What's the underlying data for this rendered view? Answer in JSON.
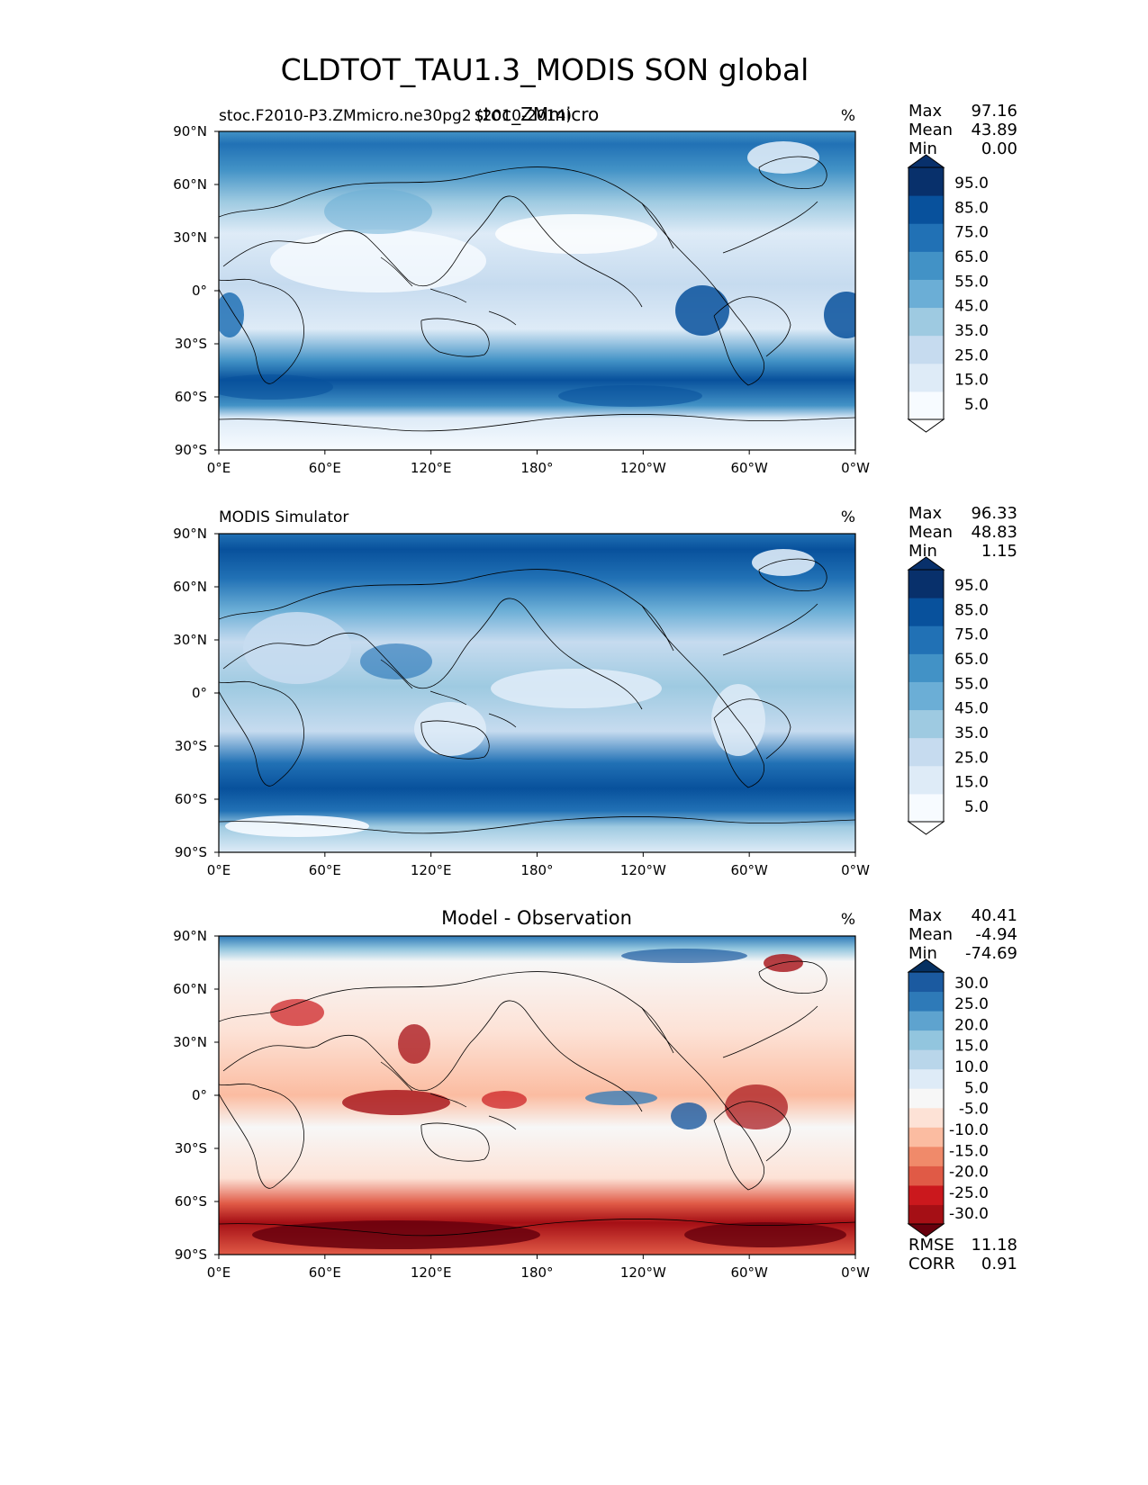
{
  "figure": {
    "title": "CLDTOT_TAU1.3_MODIS SON global"
  },
  "panels": [
    {
      "left_title": "stoc.F2010-P3.ZMmicro.ne30pg2 (2010-2014)",
      "center_title": "stoc_ZMmicro",
      "units": "%",
      "stats": [
        {
          "label": "Max",
          "value": "97.16"
        },
        {
          "label": "Mean",
          "value": "43.89"
        },
        {
          "label": "Min",
          "value": "0.00"
        }
      ],
      "colorbar": {
        "ticks": [
          "95.0",
          "85.0",
          "75.0",
          "65.0",
          "55.0",
          "45.0",
          "35.0",
          "25.0",
          "15.0",
          "5.0"
        ],
        "colors": [
          "#f7fbff",
          "#deebf7",
          "#c6dbef",
          "#9ecae1",
          "#6baed6",
          "#4292c6",
          "#2171b5",
          "#08519c",
          "#08306b"
        ],
        "under_color": "#ffffff",
        "over_color": "#08306b"
      }
    },
    {
      "left_title": "MODIS Simulator",
      "center_title": "",
      "units": "%",
      "stats": [
        {
          "label": "Max",
          "value": "96.33"
        },
        {
          "label": "Mean",
          "value": "48.83"
        },
        {
          "label": "Min",
          "value": "1.15"
        }
      ],
      "colorbar": {
        "ticks": [
          "95.0",
          "85.0",
          "75.0",
          "65.0",
          "55.0",
          "45.0",
          "35.0",
          "25.0",
          "15.0",
          "5.0"
        ],
        "colors": [
          "#f7fbff",
          "#deebf7",
          "#c6dbef",
          "#9ecae1",
          "#6baed6",
          "#4292c6",
          "#2171b5",
          "#08519c",
          "#08306b"
        ],
        "under_color": "#ffffff",
        "over_color": "#08306b"
      }
    },
    {
      "left_title": "",
      "center_title": "Model - Observation",
      "units": "%",
      "stats": [
        {
          "label": "Max",
          "value": "40.41"
        },
        {
          "label": "Mean",
          "value": "-4.94"
        },
        {
          "label": "Min",
          "value": "-74.69"
        }
      ],
      "colorbar": {
        "ticks": [
          "30.0",
          "25.0",
          "20.0",
          "15.0",
          "10.0",
          "5.0",
          "-5.0",
          "-10.0",
          "-15.0",
          "-20.0",
          "-25.0",
          "-30.0"
        ],
        "colors": [
          "#a50f15",
          "#cb181d",
          "#e05a46",
          "#f08a6a",
          "#fbbca1",
          "#fde2d6",
          "#f7f7f7",
          "#deebf7",
          "#b9d6ea",
          "#92c5de",
          "#5ea3cf",
          "#2e7ab8",
          "#1b5aa0"
        ],
        "under_color": "#67000d",
        "over_color": "#053061"
      },
      "extra_stats": [
        {
          "label": "RMSE",
          "value": "11.18"
        },
        {
          "label": "CORR",
          "value": "0.91"
        }
      ]
    }
  ],
  "axes": {
    "x_ticks": [
      "0°E",
      "60°E",
      "120°E",
      "180°",
      "120°W",
      "60°W",
      "0°W"
    ],
    "y_ticks": [
      "90°N",
      "60°N",
      "30°N",
      "0°",
      "30°S",
      "60°S",
      "90°S"
    ]
  },
  "colors": {
    "blue_scale": [
      "#f7fbff",
      "#deebf7",
      "#c6dbef",
      "#9ecae1",
      "#6baed6",
      "#4292c6",
      "#2171b5",
      "#08519c",
      "#08306b"
    ],
    "diff_red": [
      "#67000d",
      "#a50f15",
      "#e05a46",
      "#fbbca1"
    ],
    "diff_blue": [
      "#053061",
      "#2e7ab8",
      "#92c5de",
      "#deebf7"
    ],
    "neutral": "#f7f7f7"
  }
}
